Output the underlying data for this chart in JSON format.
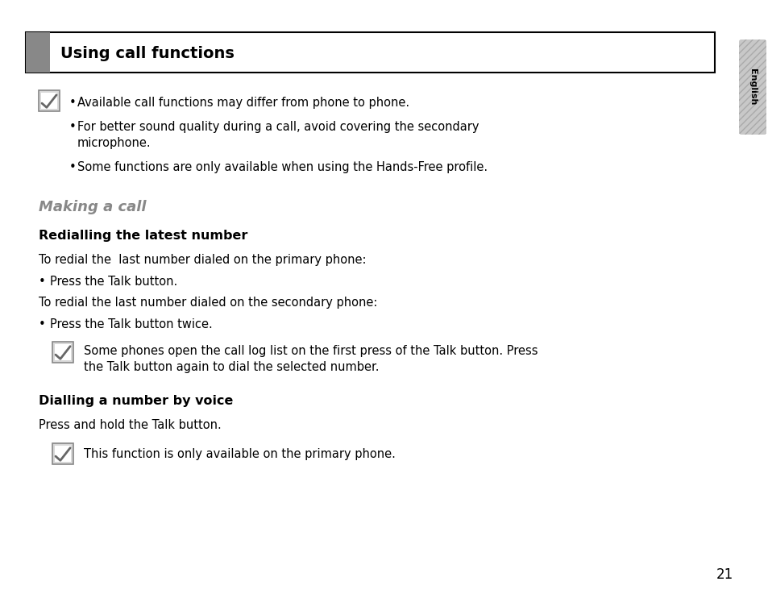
{
  "bg_color": "#ffffff",
  "header_bg": "#ffffff",
  "header_bar_color": "#888888",
  "header_text": "Using call functions",
  "header_text_color": "#000000",
  "sidebar_color": "#c8c8c8",
  "sidebar_text": "English",
  "page_number": "21",
  "section_title": "Making a call",
  "section_title_color": "#888888",
  "bold_heading1": "Redialling the latest number",
  "bold_heading2": "Dialling a number by voice",
  "note_bullet1": "Available call functions may differ from phone to phone.",
  "note_bullet2a": "For better sound quality during a call, avoid covering the secondary",
  "note_bullet2b": "microphone.",
  "note_bullet3": "Some functions are only available when using the Hands-Free profile.",
  "para1": "To redial the  last number dialed on the primary phone:",
  "bullet_a": "•  Press the Talk button.",
  "para2": "To redial the last number dialed on the secondary phone:",
  "bullet_b": "•  Press the Talk button twice.",
  "note2_line1": "Some phones open the call log list on the first press of the Talk button. Press",
  "note2_line2": "the Talk button again to dial the selected number.",
  "para3": "Press and hold the Talk button.",
  "note3_text": "This function is only available on the primary phone.",
  "font_size_body": 10.5,
  "font_size_heading": 11.5,
  "font_size_section": 13,
  "font_size_header": 14
}
